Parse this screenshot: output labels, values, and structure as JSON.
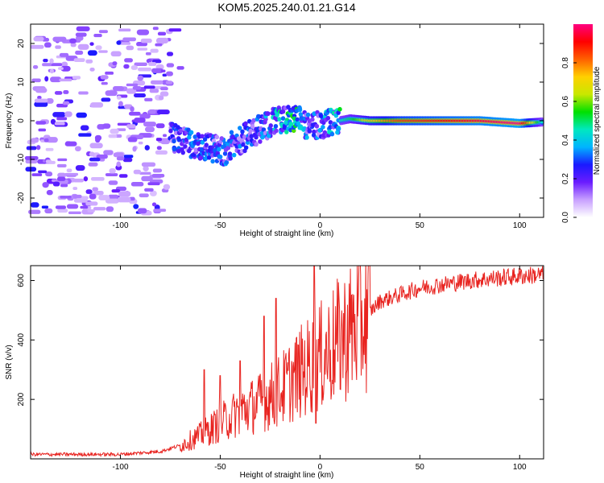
{
  "title": "KOM5.2025.240.01.21.G14",
  "chart_data": [
    {
      "type": "heatmap",
      "xlabel": "Height of straight line (km)",
      "ylabel": "Frequency (Hz)",
      "xlim": [
        -145,
        112
      ],
      "ylim": [
        -25,
        25
      ],
      "xticks": [
        -100,
        -50,
        0,
        50,
        100
      ],
      "yticks": [
        -20,
        -10,
        0,
        10,
        20
      ],
      "colorbar": {
        "label": "Normalized spectral amplitude",
        "range": [
          0,
          1
        ],
        "ticks": [
          0.0,
          0.2,
          0.4,
          0.6,
          0.8
        ],
        "colors": [
          "#ffffff",
          "#c8a0ff",
          "#6a1cff",
          "#1a1aff",
          "#00b4ff",
          "#00e8c0",
          "#00e000",
          "#c8e800",
          "#ffd000",
          "#ff6000",
          "#ff0000",
          "#ff0080"
        ]
      },
      "features": {
        "noise_region_x": [
          -145,
          -75
        ],
        "main_trace": [
          {
            "x": -75,
            "f": -4,
            "a": 0.25
          },
          {
            "x": -65,
            "f": -6,
            "a": 0.3
          },
          {
            "x": -55,
            "f": -7,
            "a": 0.3
          },
          {
            "x": -48,
            "f": -8,
            "a": 0.3
          },
          {
            "x": -40,
            "f": -5,
            "a": 0.3
          },
          {
            "x": -30,
            "f": -2,
            "a": 0.3
          },
          {
            "x": -22,
            "f": 0,
            "a": 0.4
          },
          {
            "x": -12,
            "f": 0.5,
            "a": 0.5
          },
          {
            "x": -5,
            "f": -2,
            "a": 0.3
          },
          {
            "x": 0,
            "f": -1,
            "a": 0.3
          },
          {
            "x": 5,
            "f": -0.5,
            "a": 0.4
          },
          {
            "x": 15,
            "f": 0.5,
            "a": 0.5
          },
          {
            "x": 25,
            "f": 0,
            "a": 0.7
          },
          {
            "x": 40,
            "f": 0,
            "a": 0.85
          },
          {
            "x": 60,
            "f": 0,
            "a": 0.9
          },
          {
            "x": 80,
            "f": 0,
            "a": 0.95
          },
          {
            "x": 100,
            "f": -0.7,
            "a": 1.0
          },
          {
            "x": 112,
            "f": -0.3,
            "a": 0.4
          }
        ]
      }
    },
    {
      "type": "line",
      "xlabel": "Height of straight line (km)",
      "ylabel": "SNR (v/v)",
      "xlim": [
        -145,
        112
      ],
      "ylim": [
        0,
        650
      ],
      "xticks": [
        -100,
        -50,
        0,
        50,
        100
      ],
      "yticks": [
        200,
        400,
        600
      ],
      "color": "#e8231f",
      "envelope": [
        {
          "x": -145,
          "y": 15
        },
        {
          "x": -100,
          "y": 15
        },
        {
          "x": -80,
          "y": 25
        },
        {
          "x": -70,
          "y": 45
        },
        {
          "x": -60,
          "y": 80
        },
        {
          "x": -50,
          "y": 120
        },
        {
          "x": -40,
          "y": 160
        },
        {
          "x": -30,
          "y": 190
        },
        {
          "x": -20,
          "y": 230
        },
        {
          "x": -10,
          "y": 290
        },
        {
          "x": 0,
          "y": 340
        },
        {
          "x": 10,
          "y": 400
        },
        {
          "x": 20,
          "y": 460
        },
        {
          "x": 30,
          "y": 530
        },
        {
          "x": 50,
          "y": 575
        },
        {
          "x": 75,
          "y": 600
        },
        {
          "x": 100,
          "y": 615
        },
        {
          "x": 112,
          "y": 620
        }
      ],
      "spikes": [
        {
          "x": -58,
          "y": 300
        },
        {
          "x": -50,
          "y": 280
        },
        {
          "x": -40,
          "y": 330
        },
        {
          "x": -28,
          "y": 480
        },
        {
          "x": -22,
          "y": 540
        },
        {
          "x": -3,
          "y": 650
        },
        {
          "x": -2,
          "y": 120
        }
      ]
    }
  ]
}
